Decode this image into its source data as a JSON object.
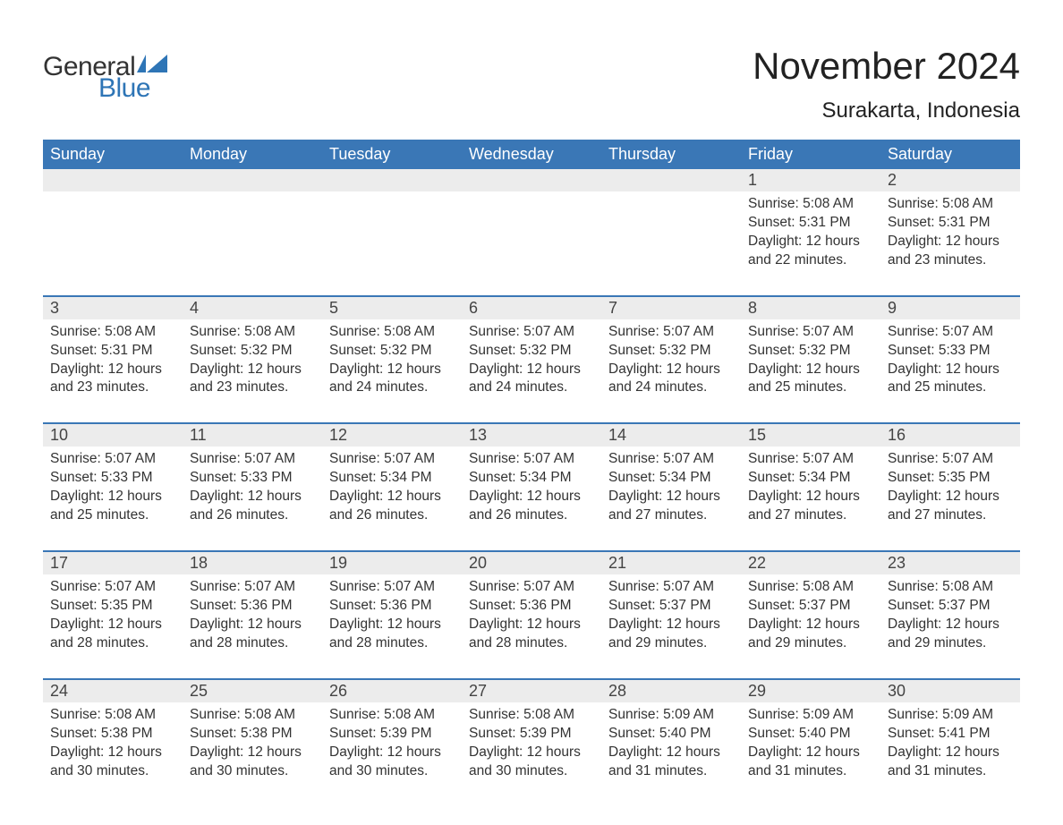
{
  "brand": {
    "word1": "General",
    "word2": "Blue"
  },
  "title": "November 2024",
  "location": "Surakarta, Indonesia",
  "colors": {
    "header_bg": "#3a77b6",
    "header_text": "#ffffff",
    "daynum_bg": "#ececec",
    "row_border": "#3a77b6",
    "text": "#333333",
    "logo_blue": "#2e75b6"
  },
  "weekdays": [
    "Sunday",
    "Monday",
    "Tuesday",
    "Wednesday",
    "Thursday",
    "Friday",
    "Saturday"
  ],
  "labels": {
    "sunrise": "Sunrise:",
    "sunset": "Sunset:",
    "daylight": "Daylight:"
  },
  "weeks": [
    [
      null,
      null,
      null,
      null,
      null,
      {
        "n": "1",
        "sunrise": "5:08 AM",
        "sunset": "5:31 PM",
        "daylight": "12 hours and 22 minutes."
      },
      {
        "n": "2",
        "sunrise": "5:08 AM",
        "sunset": "5:31 PM",
        "daylight": "12 hours and 23 minutes."
      }
    ],
    [
      {
        "n": "3",
        "sunrise": "5:08 AM",
        "sunset": "5:31 PM",
        "daylight": "12 hours and 23 minutes."
      },
      {
        "n": "4",
        "sunrise": "5:08 AM",
        "sunset": "5:32 PM",
        "daylight": "12 hours and 23 minutes."
      },
      {
        "n": "5",
        "sunrise": "5:08 AM",
        "sunset": "5:32 PM",
        "daylight": "12 hours and 24 minutes."
      },
      {
        "n": "6",
        "sunrise": "5:07 AM",
        "sunset": "5:32 PM",
        "daylight": "12 hours and 24 minutes."
      },
      {
        "n": "7",
        "sunrise": "5:07 AM",
        "sunset": "5:32 PM",
        "daylight": "12 hours and 24 minutes."
      },
      {
        "n": "8",
        "sunrise": "5:07 AM",
        "sunset": "5:32 PM",
        "daylight": "12 hours and 25 minutes."
      },
      {
        "n": "9",
        "sunrise": "5:07 AM",
        "sunset": "5:33 PM",
        "daylight": "12 hours and 25 minutes."
      }
    ],
    [
      {
        "n": "10",
        "sunrise": "5:07 AM",
        "sunset": "5:33 PM",
        "daylight": "12 hours and 25 minutes."
      },
      {
        "n": "11",
        "sunrise": "5:07 AM",
        "sunset": "5:33 PM",
        "daylight": "12 hours and 26 minutes."
      },
      {
        "n": "12",
        "sunrise": "5:07 AM",
        "sunset": "5:34 PM",
        "daylight": "12 hours and 26 minutes."
      },
      {
        "n": "13",
        "sunrise": "5:07 AM",
        "sunset": "5:34 PM",
        "daylight": "12 hours and 26 minutes."
      },
      {
        "n": "14",
        "sunrise": "5:07 AM",
        "sunset": "5:34 PM",
        "daylight": "12 hours and 27 minutes."
      },
      {
        "n": "15",
        "sunrise": "5:07 AM",
        "sunset": "5:34 PM",
        "daylight": "12 hours and 27 minutes."
      },
      {
        "n": "16",
        "sunrise": "5:07 AM",
        "sunset": "5:35 PM",
        "daylight": "12 hours and 27 minutes."
      }
    ],
    [
      {
        "n": "17",
        "sunrise": "5:07 AM",
        "sunset": "5:35 PM",
        "daylight": "12 hours and 28 minutes."
      },
      {
        "n": "18",
        "sunrise": "5:07 AM",
        "sunset": "5:36 PM",
        "daylight": "12 hours and 28 minutes."
      },
      {
        "n": "19",
        "sunrise": "5:07 AM",
        "sunset": "5:36 PM",
        "daylight": "12 hours and 28 minutes."
      },
      {
        "n": "20",
        "sunrise": "5:07 AM",
        "sunset": "5:36 PM",
        "daylight": "12 hours and 28 minutes."
      },
      {
        "n": "21",
        "sunrise": "5:07 AM",
        "sunset": "5:37 PM",
        "daylight": "12 hours and 29 minutes."
      },
      {
        "n": "22",
        "sunrise": "5:08 AM",
        "sunset": "5:37 PM",
        "daylight": "12 hours and 29 minutes."
      },
      {
        "n": "23",
        "sunrise": "5:08 AM",
        "sunset": "5:37 PM",
        "daylight": "12 hours and 29 minutes."
      }
    ],
    [
      {
        "n": "24",
        "sunrise": "5:08 AM",
        "sunset": "5:38 PM",
        "daylight": "12 hours and 30 minutes."
      },
      {
        "n": "25",
        "sunrise": "5:08 AM",
        "sunset": "5:38 PM",
        "daylight": "12 hours and 30 minutes."
      },
      {
        "n": "26",
        "sunrise": "5:08 AM",
        "sunset": "5:39 PM",
        "daylight": "12 hours and 30 minutes."
      },
      {
        "n": "27",
        "sunrise": "5:08 AM",
        "sunset": "5:39 PM",
        "daylight": "12 hours and 30 minutes."
      },
      {
        "n": "28",
        "sunrise": "5:09 AM",
        "sunset": "5:40 PM",
        "daylight": "12 hours and 31 minutes."
      },
      {
        "n": "29",
        "sunrise": "5:09 AM",
        "sunset": "5:40 PM",
        "daylight": "12 hours and 31 minutes."
      },
      {
        "n": "30",
        "sunrise": "5:09 AM",
        "sunset": "5:41 PM",
        "daylight": "12 hours and 31 minutes."
      }
    ]
  ]
}
